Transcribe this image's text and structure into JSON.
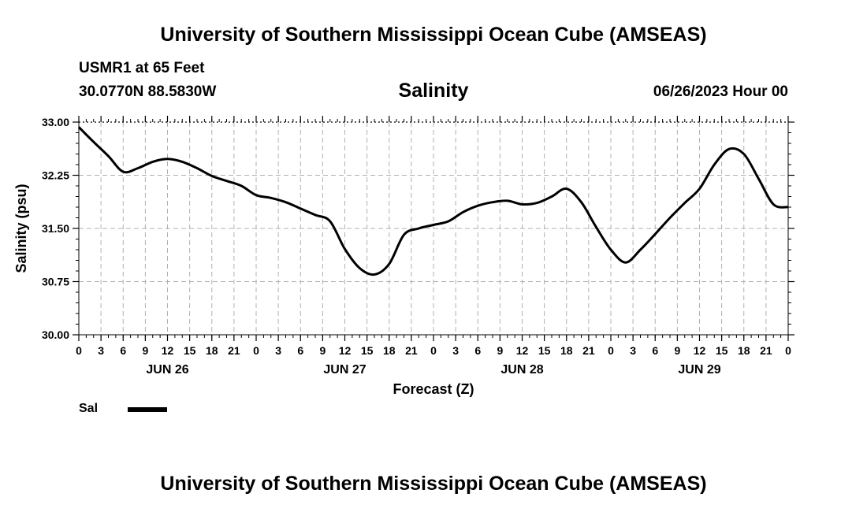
{
  "header": {
    "title": "University of Southern Mississippi Ocean Cube (AMSEAS)",
    "station": "USMR1 at 65 Feet",
    "coords": "30.0770N  88.5830W",
    "variable": "Salinity",
    "datetime": "06/26/2023 Hour 00"
  },
  "footer": {
    "title": "University of Southern Mississippi Ocean Cube (AMSEAS)"
  },
  "legend": {
    "label": "Sal",
    "color": "#000000"
  },
  "chart_data": {
    "type": "line",
    "title": "Salinity",
    "xlabel": "Forecast (Z)",
    "ylabel": "Salinity (psu)",
    "ylim": [
      30.0,
      33.0
    ],
    "xlim": [
      0,
      96
    ],
    "yticks": [
      "30.00",
      "30.75",
      "31.50",
      "32.25",
      "33.00"
    ],
    "ytick_values": [
      30.0,
      30.75,
      31.5,
      32.25,
      33.0
    ],
    "xtick_labels": [
      "0",
      "3",
      "6",
      "9",
      "12",
      "15",
      "18",
      "21",
      "0",
      "3",
      "6",
      "9",
      "12",
      "15",
      "18",
      "21",
      "0",
      "3",
      "6",
      "9",
      "12",
      "15",
      "18",
      "21",
      "0",
      "3",
      "6",
      "9",
      "12",
      "15",
      "18",
      "21",
      "0"
    ],
    "day_labels": [
      {
        "label": "JUN 26",
        "x": 12
      },
      {
        "label": "JUN 27",
        "x": 36
      },
      {
        "label": "JUN 28",
        "x": 60
      },
      {
        "label": "JUN 29",
        "x": 84
      }
    ],
    "grid": true,
    "series": [
      {
        "name": "Sal",
        "x": [
          0,
          2,
          4,
          6,
          8,
          10,
          12,
          14,
          16,
          18,
          20,
          22,
          24,
          26,
          28,
          30,
          32,
          34,
          36,
          38,
          40,
          42,
          44,
          46,
          48,
          50,
          52,
          54,
          56,
          58,
          60,
          62,
          64,
          66,
          68,
          70,
          72,
          74,
          76,
          78,
          80,
          82,
          84,
          86,
          88,
          90,
          92,
          94,
          96
        ],
        "values": [
          32.93,
          32.72,
          32.52,
          32.3,
          32.35,
          32.44,
          32.48,
          32.44,
          32.35,
          32.24,
          32.17,
          32.1,
          31.97,
          31.93,
          31.87,
          31.78,
          31.69,
          31.6,
          31.21,
          30.94,
          30.85,
          31.0,
          31.41,
          31.5,
          31.55,
          31.6,
          31.73,
          31.82,
          31.87,
          31.89,
          31.84,
          31.86,
          31.95,
          32.06,
          31.87,
          31.52,
          31.2,
          31.02,
          31.2,
          31.42,
          31.65,
          31.86,
          32.06,
          32.4,
          32.62,
          32.55,
          32.2,
          31.84,
          31.8
        ]
      }
    ]
  }
}
